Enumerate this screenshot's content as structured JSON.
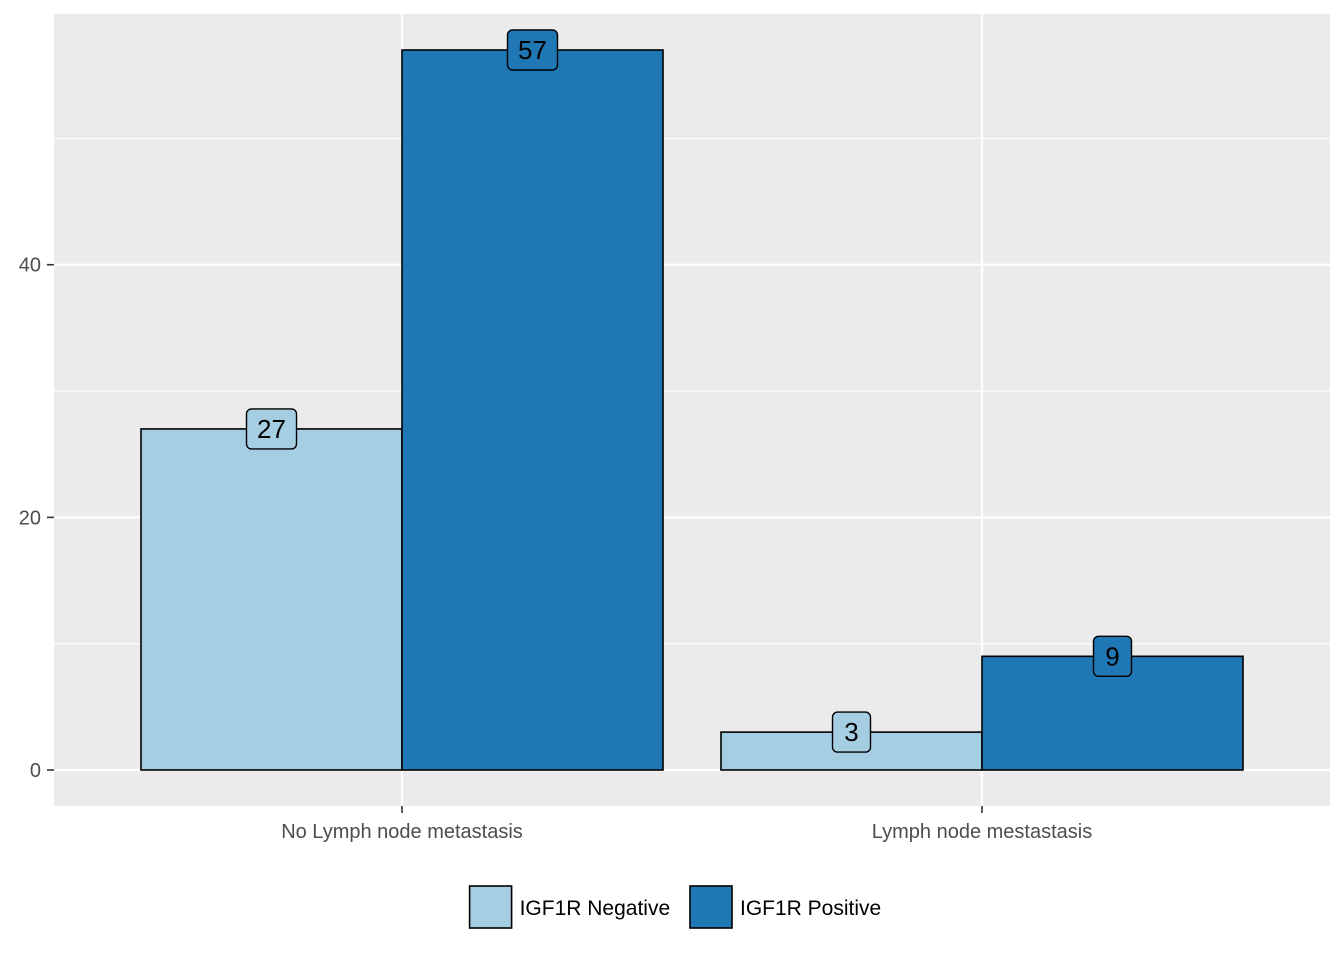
{
  "chart_data": {
    "type": "bar",
    "title": "",
    "xlabel": "",
    "ylabel": "",
    "categories": [
      "No Lymph node metastasis",
      "Lymph node mestastasis"
    ],
    "series": [
      {
        "name": "IGF1R Negative",
        "values": [
          27,
          3
        ],
        "color": "#A6CEE3"
      },
      {
        "name": "IGF1R Positive",
        "values": [
          57,
          9
        ],
        "color": "#1F78B4"
      }
    ],
    "ylim": [
      -2.85,
      59.85
    ],
    "yticks": [
      0,
      20,
      40
    ],
    "grid": true,
    "legend_position": "bottom",
    "panel_background": "#EBEBEB",
    "grid_color": "#FFFFFF",
    "bar_outline": "#000000"
  }
}
